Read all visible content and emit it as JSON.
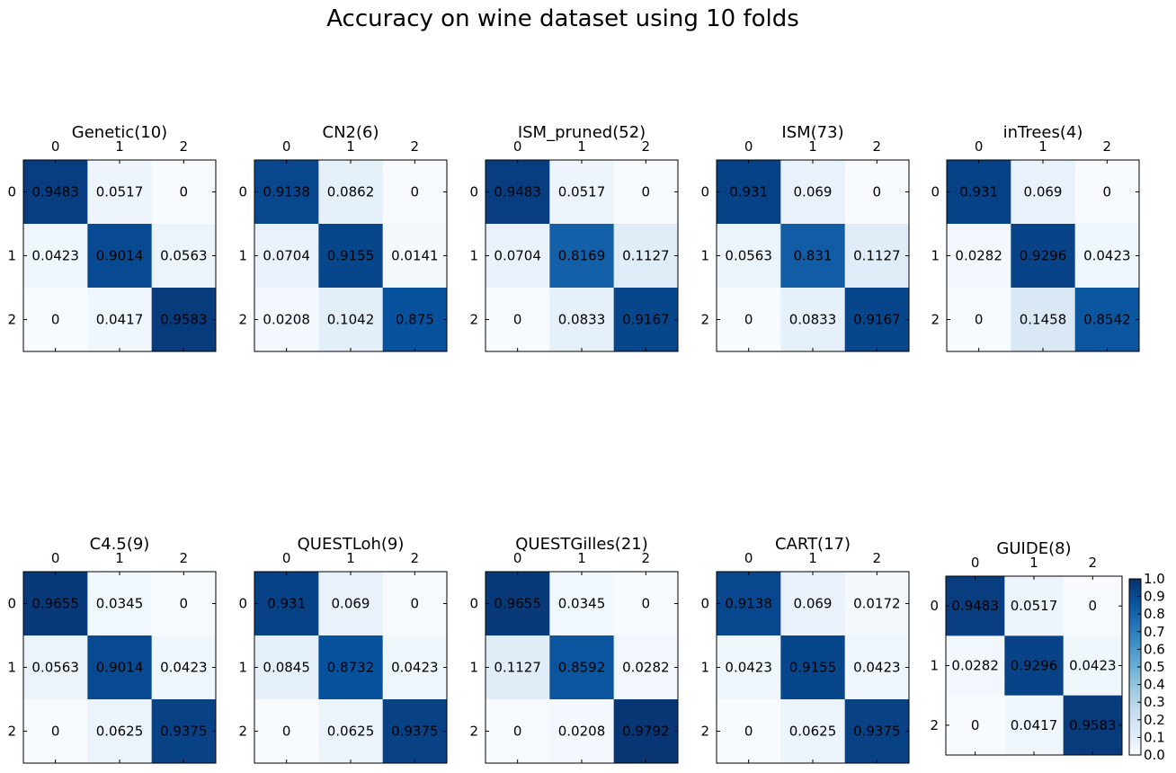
{
  "chart_data": {
    "type": "heatmap",
    "title": "Accuracy on wine dataset using 10 folds",
    "row_labels": [
      "0",
      "1",
      "2"
    ],
    "col_labels": [
      "0",
      "1",
      "2"
    ],
    "colormap": "Blues",
    "colorbar": {
      "min": 0.0,
      "max": 1.0,
      "ticks": [
        "0.0",
        "0.1",
        "0.2",
        "0.3",
        "0.4",
        "0.5",
        "0.6",
        "0.7",
        "0.8",
        "0.9",
        "1.0"
      ]
    },
    "panels": [
      {
        "title": "Genetic(10)",
        "matrix": [
          [
            0.9483,
            0.0517,
            0.0
          ],
          [
            0.0423,
            0.9014,
            0.0563
          ],
          [
            0.0,
            0.0417,
            0.9583
          ]
        ]
      },
      {
        "title": "CN2(6)",
        "matrix": [
          [
            0.9138,
            0.0862,
            0.0
          ],
          [
            0.0704,
            0.9155,
            0.0141
          ],
          [
            0.0208,
            0.1042,
            0.875
          ]
        ]
      },
      {
        "title": "ISM_pruned(52)",
        "matrix": [
          [
            0.9483,
            0.0517,
            0.0
          ],
          [
            0.0704,
            0.8169,
            0.1127
          ],
          [
            0.0,
            0.0833,
            0.9167
          ]
        ]
      },
      {
        "title": "ISM(73)",
        "matrix": [
          [
            0.931,
            0.069,
            0.0
          ],
          [
            0.0563,
            0.831,
            0.1127
          ],
          [
            0.0,
            0.0833,
            0.9167
          ]
        ]
      },
      {
        "title": "inTrees(4)",
        "matrix": [
          [
            0.931,
            0.069,
            0.0
          ],
          [
            0.0282,
            0.9296,
            0.0423
          ],
          [
            0.0,
            0.1458,
            0.8542
          ]
        ]
      },
      {
        "title": "C4.5(9)",
        "matrix": [
          [
            0.9655,
            0.0345,
            0.0
          ],
          [
            0.0563,
            0.9014,
            0.0423
          ],
          [
            0.0,
            0.0625,
            0.9375
          ]
        ]
      },
      {
        "title": "QUESTLoh(9)",
        "matrix": [
          [
            0.931,
            0.069,
            0.0
          ],
          [
            0.0845,
            0.8732,
            0.0423
          ],
          [
            0.0,
            0.0625,
            0.9375
          ]
        ]
      },
      {
        "title": "QUESTGilles(21)",
        "matrix": [
          [
            0.9655,
            0.0345,
            0.0
          ],
          [
            0.1127,
            0.8592,
            0.0282
          ],
          [
            0.0,
            0.0208,
            0.9792
          ]
        ]
      },
      {
        "title": "CART(17)",
        "matrix": [
          [
            0.9138,
            0.069,
            0.0172
          ],
          [
            0.0423,
            0.9155,
            0.0423
          ],
          [
            0.0,
            0.0625,
            0.9375
          ]
        ]
      },
      {
        "title": "GUIDE(8)",
        "matrix": [
          [
            0.9483,
            0.0517,
            0.0
          ],
          [
            0.0282,
            0.9296,
            0.0423
          ],
          [
            0.0,
            0.0417,
            0.9583
          ]
        ]
      }
    ]
  }
}
